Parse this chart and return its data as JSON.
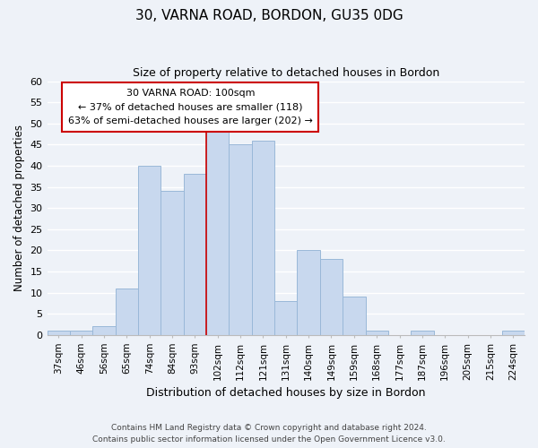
{
  "title": "30, VARNA ROAD, BORDON, GU35 0DG",
  "subtitle": "Size of property relative to detached houses in Bordon",
  "xlabel": "Distribution of detached houses by size in Bordon",
  "ylabel": "Number of detached properties",
  "bar_color": "#c8d8ee",
  "bar_edge_color": "#9ab8d8",
  "categories": [
    "37sqm",
    "46sqm",
    "56sqm",
    "65sqm",
    "74sqm",
    "84sqm",
    "93sqm",
    "102sqm",
    "112sqm",
    "121sqm",
    "131sqm",
    "140sqm",
    "149sqm",
    "159sqm",
    "168sqm",
    "177sqm",
    "187sqm",
    "196sqm",
    "205sqm",
    "215sqm",
    "224sqm"
  ],
  "values": [
    1,
    1,
    2,
    11,
    40,
    34,
    38,
    48,
    45,
    46,
    8,
    20,
    18,
    9,
    1,
    0,
    1,
    0,
    0,
    0,
    1
  ],
  "ylim": [
    0,
    60
  ],
  "yticks": [
    0,
    5,
    10,
    15,
    20,
    25,
    30,
    35,
    40,
    45,
    50,
    55,
    60
  ],
  "vline_index": 7,
  "vline_color": "#cc0000",
  "annotation_text_line1": "30 VARNA ROAD: 100sqm",
  "annotation_text_line2": "← 37% of detached houses are smaller (118)",
  "annotation_text_line3": "63% of semi-detached houses are larger (202) →",
  "annotation_box_color": "#ffffff",
  "annotation_box_edge_color": "#cc0000",
  "footer_line1": "Contains HM Land Registry data © Crown copyright and database right 2024.",
  "footer_line2": "Contains public sector information licensed under the Open Government Licence v3.0.",
  "background_color": "#eef2f8",
  "grid_color": "#ffffff"
}
